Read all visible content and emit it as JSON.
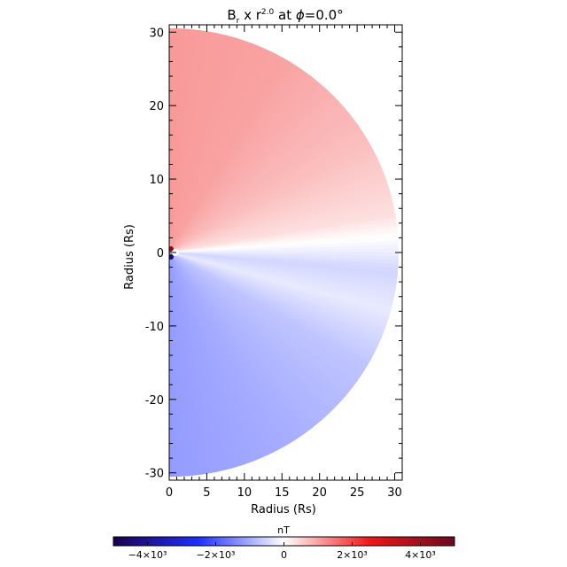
{
  "chart_data": {
    "type": "heatmap",
    "title": {
      "prefix": "B",
      "prefix_sub": "r",
      "middle": " x r",
      "exponent": "2.0",
      "at": " at ",
      "phi": "ϕ",
      "suffix": "=0.0°"
    },
    "xlabel": "Radius (Rs)",
    "ylabel": "Radius (Rs)",
    "xlim": [
      0,
      31
    ],
    "ylim": [
      -31,
      31
    ],
    "x_ticks": [
      0,
      5,
      10,
      15,
      20,
      25,
      30
    ],
    "y_ticks": [
      30,
      20,
      10,
      0,
      -10,
      -20,
      -30
    ],
    "outer_radius": 30.5,
    "current_sheet_angle_deg": 4,
    "colorbar": {
      "label": "nT",
      "range": [
        -5000,
        5000
      ],
      "ticks": [
        {
          "value": -4000,
          "label": "−4×10³"
        },
        {
          "value": -2000,
          "label": "−2×10³"
        },
        {
          "value": 0,
          "label": "0"
        },
        {
          "value": 2000,
          "label": "2×10³"
        },
        {
          "value": 4000,
          "label": "4×10³"
        }
      ]
    },
    "field_samples": [
      {
        "theta_deg": 90,
        "value": 1100
      },
      {
        "theta_deg": 60,
        "value": 1000
      },
      {
        "theta_deg": 30,
        "value": 700
      },
      {
        "theta_deg": 10,
        "value": 350
      },
      {
        "theta_deg": 4,
        "value": 0
      },
      {
        "theta_deg": -5,
        "value": -500
      },
      {
        "theta_deg": -15,
        "value": -250
      },
      {
        "theta_deg": -30,
        "value": -700
      },
      {
        "theta_deg": -60,
        "value": -1000
      },
      {
        "theta_deg": -90,
        "value": -1200
      }
    ],
    "colors": {
      "neg_max": "#1a0050",
      "neg": "#1f2fff",
      "zero": "#ffffff",
      "pos": "#f01818",
      "pos_max": "#6a0a20",
      "positive_fill": "#f9c8bc",
      "negative_fill": "#c3d3fb"
    }
  }
}
